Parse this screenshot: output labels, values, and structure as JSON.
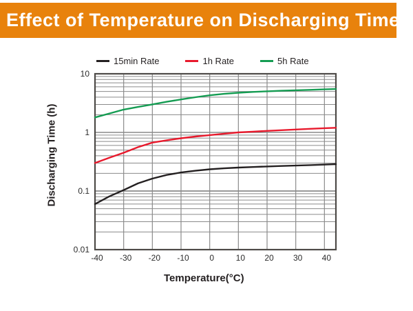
{
  "header": {
    "title": "Effect of Temperature on Discharging Time",
    "background_color": "#E8820C",
    "text_color": "#FFFFFF"
  },
  "chart_data": {
    "type": "line",
    "title": "Effect of Temperature on Discharging Time",
    "xlabel": "Temperature(°C)",
    "ylabel": "Discharging Time (h)",
    "x_scale": "linear",
    "y_scale": "log",
    "xlim": [
      -40,
      44
    ],
    "ylim": [
      0.01,
      10
    ],
    "x_ticks": [
      -40,
      -30,
      -20,
      -10,
      0,
      10,
      20,
      30,
      40
    ],
    "y_ticks": [
      0.01,
      0.1,
      1,
      10
    ],
    "y_tick_labels": [
      "0.01",
      "0.1",
      "1",
      "10"
    ],
    "grid": true,
    "minor_log_grid": true,
    "legend_position": "top",
    "grid_color": "#8A8A8A",
    "border_color": "#4D4A47",
    "x": [
      -40,
      -35,
      -30,
      -25,
      -20,
      -15,
      -10,
      -5,
      0,
      5,
      10,
      15,
      20,
      25,
      30,
      35,
      40,
      44
    ],
    "series": [
      {
        "name": "15min Rate",
        "color": "#231F20",
        "values": [
          0.06,
          0.081,
          0.104,
          0.135,
          0.163,
          0.188,
          0.207,
          0.222,
          0.235,
          0.244,
          0.251,
          0.257,
          0.262,
          0.267,
          0.272,
          0.277,
          0.282,
          0.287
        ]
      },
      {
        "name": "1h Rate",
        "color": "#E8192C",
        "values": [
          0.3,
          0.37,
          0.45,
          0.56,
          0.67,
          0.735,
          0.795,
          0.85,
          0.9,
          0.95,
          1.0,
          1.03,
          1.06,
          1.09,
          1.12,
          1.15,
          1.18,
          1.2
        ]
      },
      {
        "name": "5h Rate",
        "color": "#149C52",
        "values": [
          1.8,
          2.1,
          2.45,
          2.72,
          3.0,
          3.33,
          3.65,
          3.98,
          4.3,
          4.55,
          4.75,
          4.9,
          5.02,
          5.13,
          5.23,
          5.32,
          5.42,
          5.5
        ]
      }
    ]
  }
}
